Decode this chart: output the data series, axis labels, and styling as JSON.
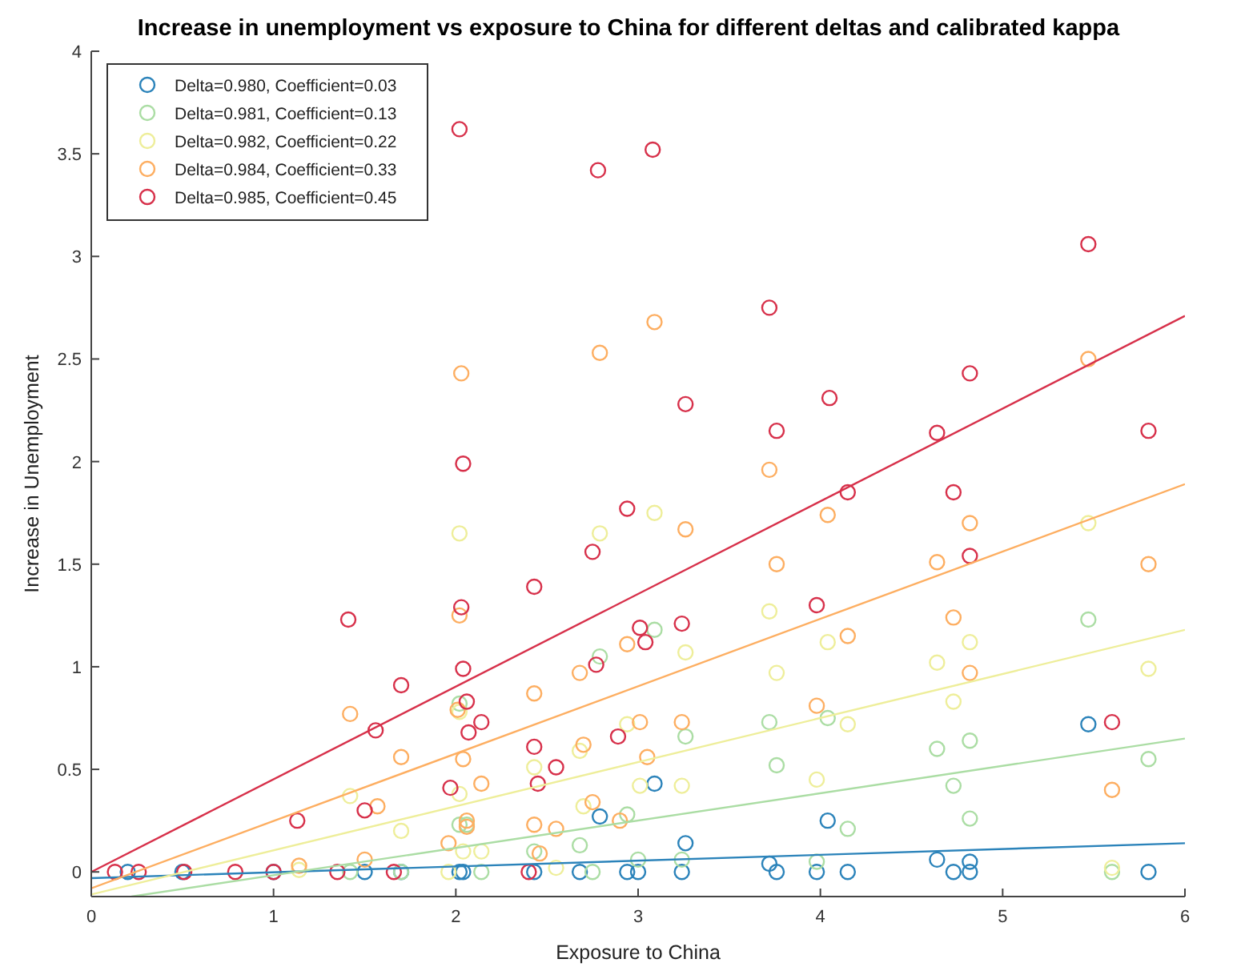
{
  "chart_data": {
    "type": "scatter",
    "title": "Increase in unemployment vs exposure to China for different deltas and calibrated kappa",
    "xlabel": "Exposure to China",
    "ylabel": "Increase in Unemployment",
    "xlim": [
      0,
      6
    ],
    "ylim": [
      -0.12,
      4
    ],
    "xticks": [
      0,
      1,
      2,
      3,
      4,
      5,
      6
    ],
    "yticks": [
      0,
      0.5,
      1,
      1.5,
      2,
      2.5,
      3,
      3.5,
      4
    ],
    "grid": false,
    "legend": "top left",
    "marker": "circle",
    "series": [
      {
        "name": "Delta=0.980, Coefficient=0.03",
        "color": "#2b83ba",
        "x": [
          2.79,
          3.09,
          3.26,
          4.04,
          4.64,
          4.82,
          5.47,
          3.72,
          3.76,
          3.98,
          4.15,
          4.73,
          4.82,
          5.8,
          3.24,
          3.0,
          2.43,
          2.68,
          2.94,
          2.04,
          2.02,
          0.2,
          0.5,
          1.0,
          1.5,
          1.7
        ],
        "values": [
          0.27,
          0.43,
          0.14,
          0.25,
          0.06,
          0.05,
          0.72,
          0.04,
          0,
          0,
          0,
          0,
          0,
          0,
          0,
          0,
          0,
          0,
          0,
          0,
          0,
          0,
          0,
          0,
          0,
          0
        ]
      },
      {
        "name": "Delta=0.981, Coefficient=0.13",
        "color": "#abdda4",
        "x": [
          2.79,
          3.09,
          3.72,
          4.04,
          3.26,
          3.76,
          4.64,
          4.82,
          4.73,
          4.82,
          4.15,
          5.47,
          5.8,
          3.98,
          3.24,
          5.6,
          2.02,
          2.02,
          2.06,
          2.43,
          2.68,
          2.94,
          1.42,
          1.7,
          2.14,
          2.75,
          3.0
        ],
        "values": [
          1.05,
          1.18,
          0.73,
          0.75,
          0.66,
          0.52,
          0.6,
          0.64,
          0.42,
          0.26,
          0.21,
          1.23,
          0.55,
          0.05,
          0.06,
          0,
          0.82,
          0.23,
          0.23,
          0.1,
          0.13,
          0.28,
          0,
          0,
          0,
          0,
          0.06
        ]
      },
      {
        "name": "Delta=0.982, Coefficient=0.22",
        "color": "#eeee9a",
        "x": [
          2.02,
          2.79,
          3.09,
          3.72,
          3.26,
          4.04,
          3.76,
          4.82,
          4.64,
          4.73,
          5.47,
          5.8,
          4.15,
          3.98,
          3.24,
          3.01,
          5.6,
          1.42,
          1.7,
          2.02,
          2.02,
          2.04,
          2.14,
          2.43,
          2.55,
          2.7,
          2.94,
          2.68,
          1.14,
          1.96
        ],
        "values": [
          1.65,
          1.65,
          1.75,
          1.27,
          1.07,
          1.12,
          0.97,
          1.12,
          1.02,
          0.83,
          1.7,
          0.99,
          0.72,
          0.45,
          0.42,
          0.42,
          0.02,
          0.37,
          0.2,
          0.78,
          0.38,
          0.1,
          0.1,
          0.51,
          0.02,
          0.32,
          0.72,
          0.59,
          0.01,
          0
        ]
      },
      {
        "name": "Delta=0.984, Coefficient=0.33",
        "color": "#fdae61",
        "x": [
          2.03,
          2.79,
          3.09,
          3.72,
          3.26,
          4.04,
          3.76,
          4.64,
          4.82,
          5.47,
          5.8,
          4.73,
          4.15,
          3.98,
          3.24,
          3.01,
          3.05,
          4.82,
          5.6,
          1.42,
          1.7,
          1.57,
          1.14,
          1.5,
          2.01,
          2.02,
          2.04,
          2.06,
          2.06,
          2.14,
          1.96,
          2.43,
          2.43,
          2.46,
          2.55,
          2.68,
          2.7,
          2.94,
          2.75,
          2.9
        ],
        "values": [
          2.43,
          2.53,
          2.68,
          1.96,
          1.67,
          1.74,
          1.5,
          1.51,
          1.7,
          2.5,
          1.5,
          1.24,
          1.15,
          0.81,
          0.73,
          0.73,
          0.56,
          0.97,
          0.4,
          0.77,
          0.56,
          0.32,
          0.03,
          0.06,
          0.79,
          1.25,
          0.55,
          0.25,
          0.22,
          0.43,
          0.14,
          0.87,
          0.23,
          0.09,
          0.21,
          0.97,
          0.62,
          1.11,
          0.34,
          0.25
        ]
      },
      {
        "name": "Delta=0.985, Coefficient=0.45",
        "color": "#d7304a",
        "x": [
          0.13,
          0.26,
          0.51,
          0.79,
          1.0,
          1.35,
          1.66,
          1.13,
          1.41,
          1.56,
          1.7,
          1.5,
          2.02,
          2.03,
          2.04,
          2.04,
          2.06,
          2.07,
          2.14,
          1.97,
          2.43,
          2.43,
          2.45,
          2.55,
          2.4,
          2.75,
          2.77,
          2.78,
          2.89,
          2.94,
          3.01,
          3.04,
          3.08,
          3.24,
          3.26,
          3.72,
          3.76,
          3.98,
          4.05,
          4.15,
          5.47,
          4.82,
          4.64,
          4.73,
          4.82,
          5.8,
          5.6
        ],
        "values": [
          0,
          0,
          0,
          0,
          0,
          0,
          0,
          0.25,
          1.23,
          0.69,
          0.91,
          0.3,
          3.62,
          1.29,
          1.99,
          0.99,
          0.83,
          0.68,
          0.73,
          0.41,
          1.39,
          0.61,
          0.43,
          0.51,
          0,
          1.56,
          1.01,
          3.42,
          0.66,
          1.77,
          1.19,
          1.12,
          3.52,
          1.21,
          2.28,
          2.75,
          2.15,
          1.3,
          2.31,
          1.85,
          3.06,
          2.43,
          2.14,
          1.85,
          1.54,
          2.15,
          0.73
        ]
      },
      {
        "type": "line",
        "marker": "none",
        "color": "#2b83ba",
        "x": [
          0,
          6
        ],
        "values": [
          -0.03,
          0.14
        ]
      },
      {
        "type": "line",
        "marker": "none",
        "color": "#abdda4",
        "x": [
          0.22,
          6
        ],
        "values": [
          -0.12,
          0.65
        ]
      },
      {
        "type": "line",
        "marker": "none",
        "color": "#eeee9a",
        "x": [
          0,
          6
        ],
        "values": [
          -0.11,
          1.18
        ]
      },
      {
        "type": "line",
        "marker": "none",
        "color": "#fdae61",
        "x": [
          0,
          6
        ],
        "values": [
          -0.08,
          1.89
        ]
      },
      {
        "type": "line",
        "marker": "none",
        "color": "#d7304a",
        "x": [
          0,
          6
        ],
        "values": [
          0,
          2.71
        ]
      }
    ]
  }
}
